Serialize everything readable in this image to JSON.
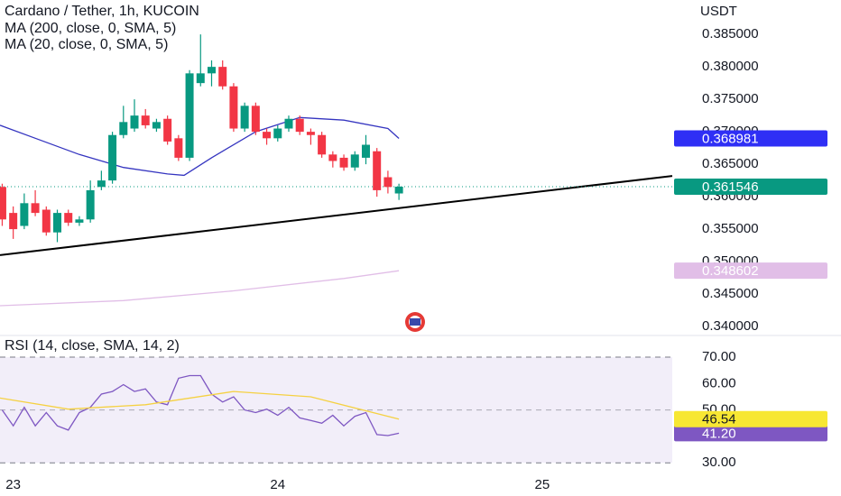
{
  "chart_data": [
    {
      "type": "candlestick",
      "title": "Cardano / Tether, 1h, KUCOIN",
      "unit": "USDT",
      "up_color": "#089981",
      "down_color": "#f23645",
      "x": [
        -1,
        0,
        1,
        2,
        3,
        4,
        5,
        6,
        7,
        8,
        9,
        10,
        11,
        12,
        13,
        14,
        15,
        16,
        17,
        18,
        19,
        20,
        21,
        22,
        23,
        24,
        25,
        26,
        27,
        28,
        29,
        30,
        31,
        32,
        33,
        34,
        35
      ],
      "open": [
        0.3615,
        0.3575,
        0.3555,
        0.359,
        0.358,
        0.3545,
        0.3575,
        0.356,
        0.3565,
        0.3615,
        0.3625,
        0.3695,
        0.3705,
        0.3725,
        0.3705,
        0.372,
        0.369,
        0.366,
        0.3775,
        0.379,
        0.38,
        0.377,
        0.3705,
        0.374,
        0.37,
        0.369,
        0.3705,
        0.372,
        0.37,
        0.3695,
        0.3665,
        0.366,
        0.3645,
        0.366,
        0.367,
        0.363,
        0.3605
      ],
      "high": [
        0.362,
        0.3585,
        0.3605,
        0.361,
        0.3585,
        0.358,
        0.358,
        0.357,
        0.3625,
        0.364,
        0.37,
        0.374,
        0.375,
        0.3735,
        0.372,
        0.3725,
        0.3695,
        0.3795,
        0.385,
        0.381,
        0.381,
        0.3775,
        0.3745,
        0.3745,
        0.3705,
        0.371,
        0.3725,
        0.3725,
        0.3705,
        0.37,
        0.367,
        0.3665,
        0.367,
        0.3695,
        0.3675,
        0.364,
        0.362
      ],
      "low": [
        0.3555,
        0.3535,
        0.355,
        0.357,
        0.354,
        0.353,
        0.3555,
        0.3555,
        0.356,
        0.361,
        0.362,
        0.369,
        0.37,
        0.3705,
        0.37,
        0.368,
        0.3655,
        0.3655,
        0.377,
        0.377,
        0.3765,
        0.37,
        0.37,
        0.3695,
        0.368,
        0.3685,
        0.37,
        0.3695,
        0.368,
        0.366,
        0.3645,
        0.364,
        0.364,
        0.365,
        0.36,
        0.3605,
        0.3595
      ],
      "close": [
        0.3565,
        0.355,
        0.359,
        0.3575,
        0.3545,
        0.3575,
        0.356,
        0.3565,
        0.361,
        0.3625,
        0.3695,
        0.3715,
        0.3725,
        0.371,
        0.3715,
        0.3685,
        0.366,
        0.379,
        0.379,
        0.38,
        0.377,
        0.3705,
        0.374,
        0.37,
        0.369,
        0.3705,
        0.372,
        0.37,
        0.3695,
        0.3665,
        0.3655,
        0.3645,
        0.3665,
        0.368,
        0.361,
        0.3615,
        0.361546
      ],
      "last_price": 0.361546,
      "last_price_color": "#089981",
      "series": [
        {
          "name": "MA (200, close, 0, SMA, 5)",
          "color": "#e1bee7",
          "tag_color": "#e1bee7",
          "x": [
            -1.2,
            10,
            20,
            30,
            35
          ],
          "values": [
            0.3432,
            0.344,
            0.3455,
            0.3474,
            0.348602
          ],
          "last": 0.348602
        },
        {
          "name": "MA (20, close, 0, SMA, 5)",
          "color": "#3535c0",
          "tag_color": "#2f2ff5",
          "x": [
            -1.2,
            2,
            6,
            10,
            14,
            15.5,
            18,
            22,
            26,
            30,
            34,
            35
          ],
          "values": [
            0.371,
            0.369,
            0.3665,
            0.3645,
            0.3635,
            0.3633,
            0.366,
            0.37,
            0.3722,
            0.3718,
            0.3705,
            0.368981
          ],
          "last": 0.368981
        }
      ],
      "trendline": {
        "color": "#000000",
        "x": [
          -1.2,
          59.8
        ],
        "values": [
          0.351,
          0.3632
        ]
      },
      "xlim": [
        -1.2,
        59.8
      ],
      "xticks": [
        {
          "value": 0,
          "label": "23"
        },
        {
          "value": 24,
          "label": "24"
        },
        {
          "value": 48,
          "label": "25"
        }
      ],
      "ylim": [
        0.3389,
        0.3903
      ],
      "yticks": [
        {
          "value": 0.385,
          "label": "0.385000"
        },
        {
          "value": 0.38,
          "label": "0.380000"
        },
        {
          "value": 0.375,
          "label": "0.375000"
        },
        {
          "value": 0.37,
          "label": "0.370000"
        },
        {
          "value": 0.365,
          "label": "0.365000"
        },
        {
          "value": 0.36,
          "label": "0.360000"
        },
        {
          "value": 0.355,
          "label": "0.355000"
        },
        {
          "value": 0.35,
          "label": "0.350000"
        },
        {
          "value": 0.345,
          "label": "0.345000"
        },
        {
          "value": 0.34,
          "label": "0.340000"
        }
      ]
    },
    {
      "type": "line",
      "title": "RSI (14, close, SMA, 14, 2)",
      "series": [
        {
          "name": "RSI",
          "color": "#7e57c2",
          "tag_color": "#7e57c2",
          "tag_text_color": "#ffffff",
          "x": [
            -1,
            0,
            1,
            2,
            3,
            4,
            5,
            6,
            7,
            8,
            9,
            10,
            11,
            12,
            13,
            14,
            15,
            16,
            17,
            18,
            19,
            20,
            21,
            22,
            23,
            24,
            25,
            26,
            27,
            28,
            29,
            30,
            31,
            32,
            33,
            34,
            35
          ],
          "values": [
            50,
            44,
            51,
            44,
            49,
            44,
            42.4,
            49,
            51,
            56,
            57,
            59.6,
            57,
            58,
            53,
            52,
            62,
            63,
            63,
            56,
            53,
            55,
            50,
            49,
            50.3,
            48,
            51,
            47,
            46,
            45,
            48,
            44,
            47.6,
            49,
            40.7,
            40.3,
            41.2
          ],
          "last": {
            "value": 41.2,
            "label": "41.20"
          }
        },
        {
          "name": "RSI MA",
          "color": "#f5d142",
          "tag_color": "#f7e733",
          "tag_text_color": "#131722",
          "x": [
            -1.2,
            5,
            12,
            20,
            27,
            35
          ],
          "values": [
            54.5,
            50.3,
            52,
            57,
            55,
            46.54
          ],
          "last": {
            "value": 46.54,
            "label": "46.54"
          }
        }
      ],
      "band": [
        30,
        70
      ],
      "midline": 50,
      "band_color": "#7e57c2",
      "xlim": [
        -1.2,
        59.8
      ],
      "ylim": [
        29.4,
        77.5
      ],
      "yticks": [
        {
          "value": 70,
          "label": "70.00"
        },
        {
          "value": 60,
          "label": "60.00"
        },
        {
          "value": 50,
          "label": "50.00"
        },
        {
          "value": 30,
          "label": "30.00"
        }
      ]
    }
  ]
}
